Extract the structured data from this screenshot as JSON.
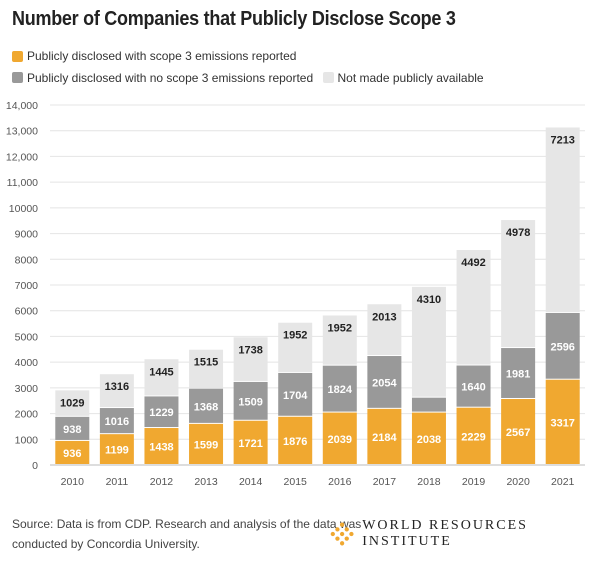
{
  "chart_data": {
    "type": "bar",
    "stacked": true,
    "title": "Number of Companies that Publicly Disclose Scope 3",
    "categories": [
      "2010",
      "2011",
      "2012",
      "2013",
      "2014",
      "2015",
      "2016",
      "2017",
      "2018",
      "2019",
      "2020",
      "2021"
    ],
    "series": [
      {
        "name": "Publicly disclosed with scope 3 emissions reported",
        "color": "#f0a830",
        "label_color": "#ffffff",
        "values": [
          936,
          1199,
          1438,
          1599,
          1721,
          1876,
          2039,
          2184,
          2038,
          2229,
          2567,
          3317
        ],
        "labeled": [
          true,
          true,
          true,
          true,
          true,
          true,
          true,
          true,
          true,
          true,
          true,
          true
        ]
      },
      {
        "name": "Publicly disclosed with no scope 3 emissions reported",
        "color": "#999999",
        "label_color": "#ffffff",
        "values": [
          938,
          1016,
          1229,
          1368,
          1509,
          1704,
          1824,
          2054,
          580,
          1640,
          1981,
          2596
        ],
        "labeled": [
          true,
          true,
          true,
          true,
          true,
          true,
          true,
          true,
          false,
          true,
          true,
          true
        ]
      },
      {
        "name": "Not made publicly available",
        "color": "#e6e6e6",
        "label_color": "#222222",
        "values": [
          1029,
          1316,
          1445,
          1515,
          1738,
          1952,
          1952,
          2013,
          4310,
          4492,
          4978,
          7213
        ],
        "labeled": [
          true,
          true,
          true,
          true,
          true,
          true,
          true,
          true,
          true,
          true,
          true,
          true
        ]
      }
    ],
    "ylim": [
      0,
      14000
    ],
    "yticks": [
      0,
      1000,
      2000,
      3000,
      4000,
      5000,
      6000,
      7000,
      8000,
      9000,
      10000,
      11000,
      12000,
      13000,
      14000
    ],
    "ytick_labels": [
      "0",
      "1000",
      "2000",
      "3000",
      "4000",
      "5000",
      "6000",
      "7000",
      "8000",
      "9000",
      "10000",
      "11,000",
      "12,000",
      "13,000",
      "14,000"
    ],
    "grid": true,
    "legend_position": "top-left"
  },
  "source": {
    "line1": "Source: Data is from CDP. Research and analysis of the data was",
    "line2": "conducted by Concordia University."
  },
  "logo": {
    "text": "WORLD RESOURCES INSTITUTE",
    "color": "#f0a830"
  }
}
